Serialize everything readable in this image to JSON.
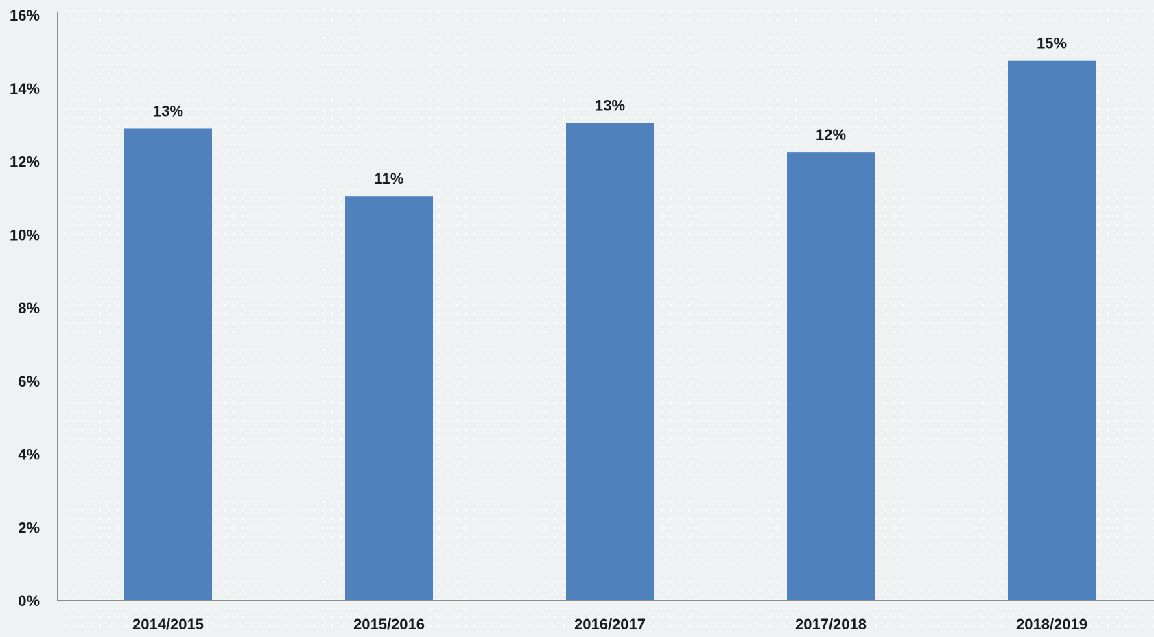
{
  "chart_data": {
    "type": "bar",
    "title": "",
    "xlabel": "",
    "ylabel": "",
    "categories": [
      "2014/2015",
      "2015/2016",
      "2016/2017",
      "2017/2018",
      "2018/2019"
    ],
    "values": [
      12.9,
      11.05,
      13.05,
      12.25,
      14.75
    ],
    "data_labels": [
      "13%",
      "11%",
      "13%",
      "12%",
      "15%"
    ],
    "ylim": [
      0,
      16
    ],
    "y_ticks": [
      "0%",
      "2%",
      "4%",
      "6%",
      "8%",
      "10%",
      "12%",
      "14%",
      "16%"
    ],
    "y_tick_values": [
      0,
      2,
      4,
      6,
      8,
      10,
      12,
      14,
      16
    ],
    "grid": false,
    "legend": "none",
    "colors": {
      "bar": "#4f81bd",
      "background": "#eef2f3",
      "axis": "#8c8c8c",
      "text": "#1a1a1a"
    }
  }
}
